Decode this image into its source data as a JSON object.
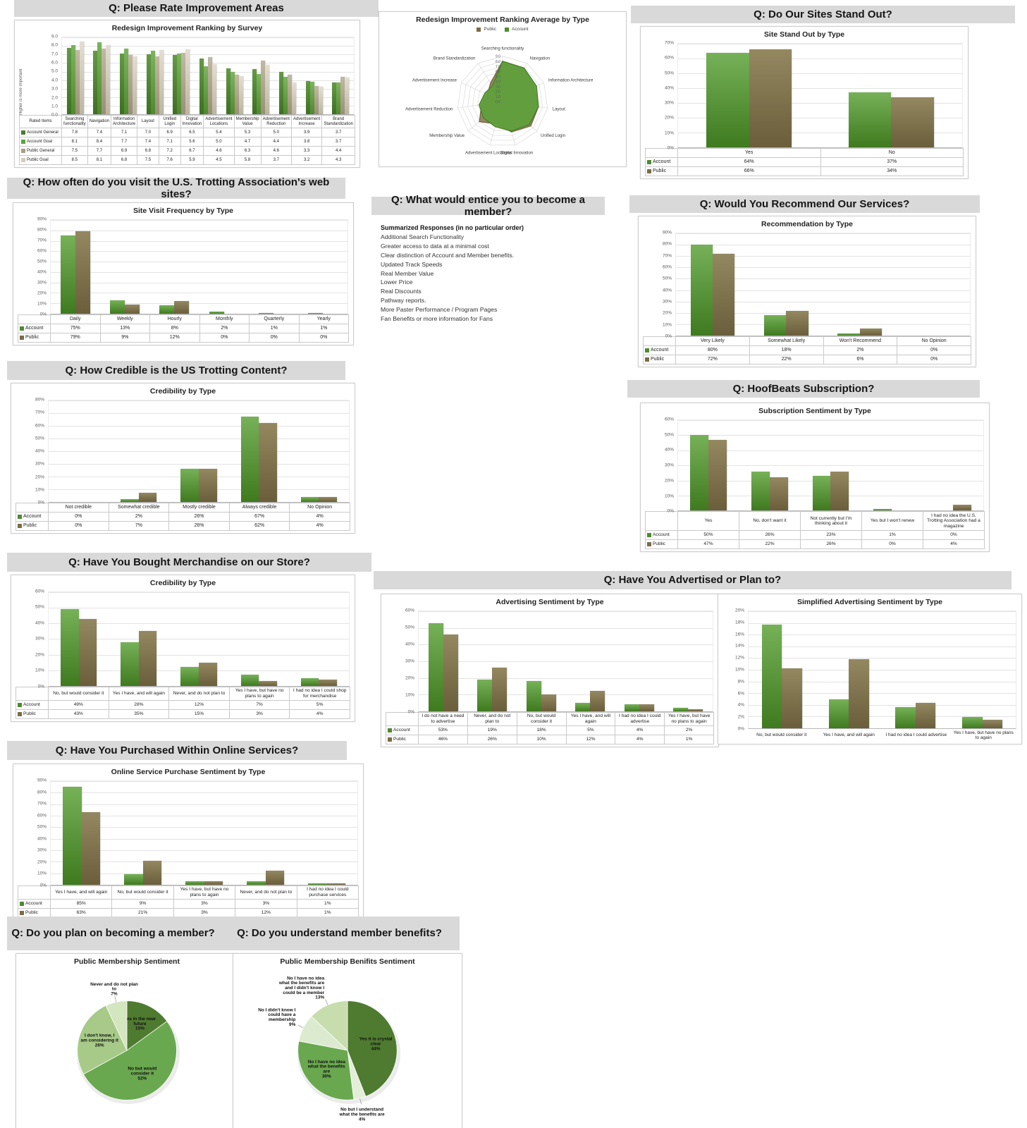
{
  "headers": {
    "improvement": "Q: Please Rate Improvement Areas",
    "standout": "Q: Do Our Sites Stand Out?",
    "visit": "Q: How often do you visit the U.S. Trotting Association's web sites?",
    "entice": "Q: What would entice you to become a member?",
    "recommend": "Q: Would You Recommend Our Services?",
    "credibility": "Q: How Credible is the US Trotting Content?",
    "hoofbeats": "Q: HoofBeats Subscription?",
    "merch": "Q: Have You Bought Merchandise on our Store?",
    "advertised": "Q: Have You Advertised or Plan to?",
    "online": "Q: Have You Purchased Within Online Services?",
    "member": "Q: Do you plan on becoming a member?",
    "benefits": "Q: Do you understand member benefits?"
  },
  "entice": {
    "list_title": "Summarized Responses (in no particular order)",
    "items": [
      "Additional Search Functionality",
      "Greater access to data at a minimal cost",
      "Clear distinction of Account and Member benefits.",
      "Updated Track Speeds",
      "Real Member Value",
      "Lower Price",
      "Real Discounts",
      "Pathway reports.",
      "More Paster Performance  / Program Pages",
      "Fan Benefits or more information for Fans"
    ]
  },
  "colors": {
    "account_green": "#4e8b2e",
    "public_brown": "#7a6c44",
    "banner_grey": "#d9d9d9"
  },
  "chart_data": [
    {
      "id": "ranking",
      "type": "bar",
      "title": "Redesign Improvement Ranking by Survey",
      "ylabel": "Higher is more important",
      "corner": "Rated Items",
      "ylim": [
        0,
        9
      ],
      "ystep": 1,
      "yfmt": "dec",
      "label_w": 60,
      "fs": 6,
      "grid": true,
      "table": true,
      "categories": [
        "Searching functionality",
        "Navigation",
        "Information Architecture",
        "Layout",
        "Unified Login",
        "Digital Innovation",
        "Advertisement Locations",
        "Membership Value",
        "Advertisement Reduction",
        "Advertisement Increase",
        "Brand Standardization"
      ],
      "series": [
        {
          "name": "Account General",
          "swatch": "#4a7c2b",
          "color_top": "#639a45",
          "color_bottom": "#3e6f22",
          "values": [
            7.8,
            7.4,
            7.1,
            7.0,
            6.9,
            6.5,
            5.4,
            5.3,
            5.0,
            3.9,
            3.7
          ]
        },
        {
          "name": "Account Goal",
          "swatch": "#61a140",
          "color_top": "#7cb45e",
          "color_bottom": "#4f8a2e",
          "values": [
            8.1,
            8.4,
            7.7,
            7.4,
            7.1,
            5.6,
            5.0,
            4.7,
            4.4,
            3.8,
            3.7
          ]
        },
        {
          "name": "Public General",
          "swatch": "#a99f85",
          "color_top": "#c1b9a3",
          "color_bottom": "#998f74",
          "values": [
            7.5,
            7.7,
            6.9,
            6.8,
            7.2,
            6.7,
            4.6,
            6.3,
            4.6,
            3.3,
            4.4
          ]
        },
        {
          "name": "Public Goal",
          "swatch": "#d3ccba",
          "color_top": "#e3ded1",
          "color_bottom": "#bcb5a2",
          "values": [
            8.5,
            8.1,
            6.8,
            7.5,
            7.6,
            5.9,
            4.5,
            5.8,
            3.7,
            3.2,
            4.3
          ]
        }
      ]
    },
    {
      "id": "radar",
      "type": "radar",
      "title": "Redesign Improvement Ranking Average by Type",
      "rmax": 9,
      "axes": [
        "Searching functionality",
        "Navigation",
        "Information Architecture",
        "Layout",
        "Unified Login",
        "Digital Innovation",
        "Advertisement Locations",
        "Membership Value",
        "Advertisement Reduction",
        "Advertisement Increase",
        "Brand Standardization"
      ],
      "series": [
        {
          "name": "Public",
          "swatch": "#7a6c44",
          "fill": "#8f815a",
          "stroke": "#6e6140",
          "values": [
            8.0,
            7.9,
            6.9,
            7.2,
            7.4,
            6.3,
            4.6,
            6.1,
            4.2,
            3.3,
            4.4
          ]
        },
        {
          "name": "Account",
          "swatch": "#4e8b2e",
          "fill": "#5f9f3b",
          "stroke": "#477d26",
          "values": [
            8.0,
            7.9,
            7.4,
            7.2,
            7.0,
            6.1,
            5.2,
            5.0,
            4.7,
            3.9,
            3.7
          ]
        }
      ]
    },
    {
      "id": "standout",
      "type": "bar",
      "title": "Site Stand Out by Type",
      "ylim": [
        0,
        70
      ],
      "ystep": 10,
      "yfmt": "pct",
      "label_w": 46,
      "fs": 7,
      "table": true,
      "categories": [
        "Yes",
        "No"
      ],
      "series": [
        {
          "name": "Account",
          "swatch": "#4e8b2e",
          "color_top": "#76b158",
          "color_bottom": "#3f7a1f",
          "values": [
            64,
            37
          ]
        },
        {
          "name": "Public",
          "swatch": "#7a6c44",
          "color_top": "#948861",
          "color_bottom": "#6a5e3b",
          "values": [
            66,
            34
          ]
        }
      ]
    },
    {
      "id": "visit",
      "type": "bar",
      "title": "Site Visit Frequency by Type",
      "ylim": [
        0,
        90
      ],
      "ystep": 10,
      "yfmt": "pct",
      "label_w": 46,
      "fs": 7,
      "table": true,
      "categories": [
        "Daily",
        "Weekly",
        "Hourly",
        "Monthly",
        "Quarterly",
        "Yearly"
      ],
      "series": [
        {
          "name": "Account",
          "swatch": "#4e8b2e",
          "color_top": "#76b158",
          "color_bottom": "#3f7a1f",
          "values": [
            75,
            13,
            8,
            2,
            1,
            1
          ]
        },
        {
          "name": "Public",
          "swatch": "#7a6c44",
          "color_top": "#948861",
          "color_bottom": "#6a5e3b",
          "values": [
            79,
            9,
            12,
            0,
            0,
            0
          ]
        }
      ]
    },
    {
      "id": "recommend",
      "type": "bar",
      "title": "Recommendation by Type",
      "ylim": [
        0,
        90
      ],
      "ystep": 10,
      "yfmt": "pct",
      "label_w": 46,
      "fs": 7,
      "table": true,
      "categories": [
        "Very Likely",
        "Somewhat Likely",
        "Won't Recommend",
        "No Opinion"
      ],
      "series": [
        {
          "name": "Account",
          "swatch": "#4e8b2e",
          "color_top": "#76b158",
          "color_bottom": "#3f7a1f",
          "values": [
            80,
            18,
            2,
            0
          ]
        },
        {
          "name": "Public",
          "swatch": "#7a6c44",
          "color_top": "#948861",
          "color_bottom": "#6a5e3b",
          "values": [
            72,
            22,
            6,
            0
          ]
        }
      ]
    },
    {
      "id": "credibility",
      "type": "bar",
      "title": "Credibility by Type",
      "ylim": [
        0,
        80
      ],
      "ystep": 10,
      "yfmt": "pct",
      "label_w": 46,
      "fs": 7,
      "table": true,
      "categories": [
        "Not credible",
        "Somewhat credible",
        "Mostly credible",
        "Always credible",
        "No Opinion"
      ],
      "series": [
        {
          "name": "Account",
          "swatch": "#4e8b2e",
          "color_top": "#76b158",
          "color_bottom": "#3f7a1f",
          "values": [
            0,
            2,
            26,
            67,
            4
          ]
        },
        {
          "name": "Public",
          "swatch": "#7a6c44",
          "color_top": "#948861",
          "color_bottom": "#6a5e3b",
          "values": [
            0,
            7,
            26,
            62,
            4
          ]
        }
      ]
    },
    {
      "id": "hoofbeats",
      "type": "bar",
      "title": "Subscription Sentiment by Type",
      "ylim": [
        0,
        60
      ],
      "ystep": 10,
      "yfmt": "pct",
      "label_w": 46,
      "fs": 6.6,
      "table": true,
      "categories": [
        "Yes",
        "No, don't want it",
        "Not currently but I'm thinking about it",
        "Yes but I won't renew",
        "I had no idea the U.S. Trotting Association had a magazine"
      ],
      "series": [
        {
          "name": "Account",
          "swatch": "#4e8b2e",
          "color_top": "#76b158",
          "color_bottom": "#3f7a1f",
          "values": [
            50,
            26,
            23,
            1,
            0
          ]
        },
        {
          "name": "Public",
          "swatch": "#7a6c44",
          "color_top": "#948861",
          "color_bottom": "#6a5e3b",
          "values": [
            47,
            22,
            26,
            0,
            4
          ]
        }
      ]
    },
    {
      "id": "merch",
      "type": "bar",
      "title": "Credibility by Type",
      "ylim": [
        0,
        60
      ],
      "ystep": 10,
      "yfmt": "pct",
      "label_w": 46,
      "fs": 6.6,
      "table": true,
      "categories": [
        "No, but would consider it",
        "Yes I have, and will again",
        "Never, and do not plan to",
        "Yes I have, but have no plans to again",
        "I had no idea I could shop for merchandise"
      ],
      "series": [
        {
          "name": "Account",
          "swatch": "#4e8b2e",
          "color_top": "#76b158",
          "color_bottom": "#3f7a1f",
          "values": [
            49,
            28,
            12,
            7,
            5
          ]
        },
        {
          "name": "Public",
          "swatch": "#7a6c44",
          "color_top": "#948861",
          "color_bottom": "#6a5e3b",
          "values": [
            43,
            35,
            15,
            3,
            4
          ]
        }
      ]
    },
    {
      "id": "advertising",
      "type": "bar",
      "title": "Advertising Sentiment by Type",
      "ylim": [
        0,
        60
      ],
      "ystep": 10,
      "yfmt": "pct",
      "label_w": 46,
      "fs": 6.6,
      "table": true,
      "categories": [
        "I do not have a need to advertise",
        "Never, and do not plan to",
        "No, but would consider it",
        "Yes I have, and will again",
        "I had no idea I could advertise",
        "Yes I have, but have no plans to again"
      ],
      "series": [
        {
          "name": "Account",
          "swatch": "#4e8b2e",
          "color_top": "#76b158",
          "color_bottom": "#3f7a1f",
          "values": [
            53,
            19,
            18,
            5,
            4,
            2
          ]
        },
        {
          "name": "Public",
          "swatch": "#7a6c44",
          "color_top": "#948861",
          "color_bottom": "#6a5e3b",
          "values": [
            46,
            26,
            10,
            12,
            4,
            1
          ]
        }
      ]
    },
    {
      "id": "simplified",
      "type": "bar",
      "title": "Simplified Advertising Sentiment by Type",
      "ylim": [
        0,
        20
      ],
      "ystep": 2,
      "yfmt": "pct",
      "label_w": 36,
      "fs": 6.5,
      "table": false,
      "categories": [
        "No, but would consider it",
        "Yes I have, and will again",
        "I had no idea I could advertise",
        "Yes I have, but have no plans to again"
      ],
      "series": [
        {
          "name": "Account",
          "swatch": "#4e8b2e",
          "color_top": "#76b158",
          "color_bottom": "#3f7a1f",
          "values": [
            17.7,
            5.0,
            3.6,
            1.9
          ]
        },
        {
          "name": "Public",
          "swatch": "#7a6c44",
          "color_top": "#948861",
          "color_bottom": "#6a5e3b",
          "values": [
            10.3,
            11.8,
            4.4,
            1.4
          ]
        }
      ]
    },
    {
      "id": "online",
      "type": "bar",
      "title": "Online Service Purchase Sentiment by Type",
      "ylim": [
        0,
        90
      ],
      "ystep": 10,
      "yfmt": "pct",
      "label_w": 46,
      "fs": 6.6,
      "table": true,
      "categories": [
        "Yes I have, and will again",
        "No, but would consider it",
        "Yes I have, but have no plans to again",
        "Never, and do not plan to",
        "I had no idea I could purchase services"
      ],
      "series": [
        {
          "name": "Account",
          "swatch": "#4e8b2e",
          "color_top": "#76b158",
          "color_bottom": "#3f7a1f",
          "values": [
            85,
            9,
            3,
            3,
            1
          ]
        },
        {
          "name": "Public",
          "swatch": "#7a6c44",
          "color_top": "#948861",
          "color_bottom": "#6a5e3b",
          "values": [
            63,
            21,
            3,
            12,
            1
          ]
        }
      ]
    },
    {
      "id": "pie-membership",
      "type": "pie",
      "title": "Public Membership Sentiment",
      "slices": [
        {
          "label": "Yes in the near future",
          "value": 15,
          "color": "#4f7b31"
        },
        {
          "label": "No but would consider it",
          "value": 52,
          "color": "#6aa84f"
        },
        {
          "label": "I don't know, I am considering it",
          "value": 26,
          "color": "#a7ca88"
        },
        {
          "label": "Never and do not plan to",
          "value": 7,
          "color": "#d3e6c0"
        }
      ]
    },
    {
      "id": "pie-benefits",
      "type": "pie",
      "title": "Public Membership Benifits Sentiment",
      "slices": [
        {
          "label": "Yes it is crystal clear",
          "value": 44,
          "color": "#4f7b31"
        },
        {
          "label": "No but I understand what the benefits are",
          "value": 4,
          "color": "#e3eed9"
        },
        {
          "label": "No I have no idea what the benefits are",
          "value": 30,
          "color": "#6aa84f"
        },
        {
          "label": "No I didn't know I could have a membership",
          "value": 9,
          "color": "#dcebd0"
        },
        {
          "label": "No I have no idea what the benefits are and I didn't know I could be a member",
          "value": 13,
          "color": "#c7ddad"
        }
      ]
    }
  ]
}
